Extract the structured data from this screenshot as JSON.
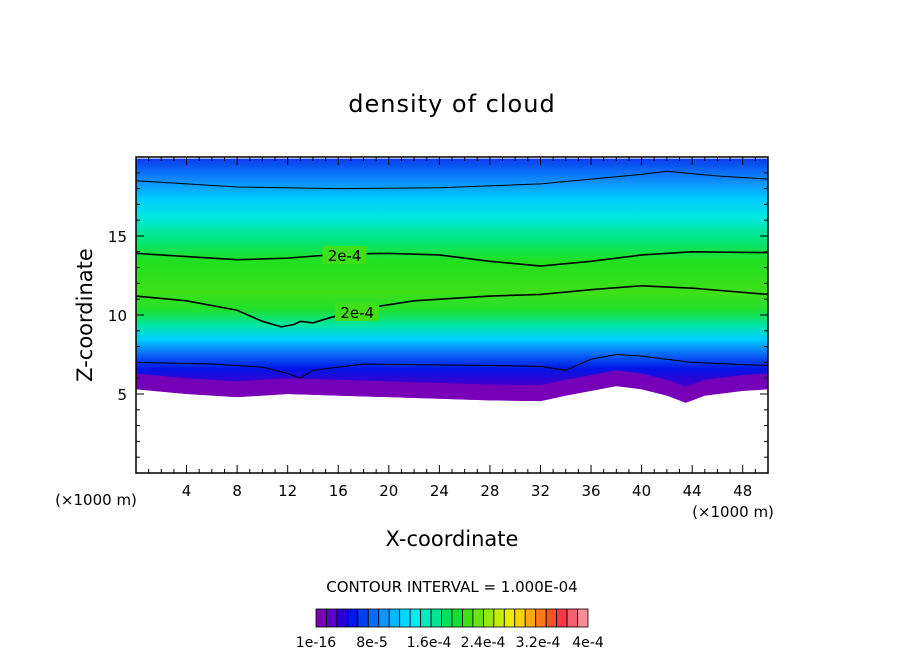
{
  "chart_data": {
    "type": "contour",
    "title": "density of cloud",
    "xlabel": "X-coordinate",
    "ylabel": "Z-coordinate",
    "x_unit_left": "(×1000 m)",
    "x_unit_right": "(×1000 m)",
    "xlim": [
      0,
      50
    ],
    "ylim": [
      0,
      20
    ],
    "x_ticks": [
      4,
      8,
      12,
      16,
      20,
      24,
      28,
      32,
      36,
      40,
      44,
      48
    ],
    "y_ticks": [
      5,
      10,
      15
    ],
    "contour_interval_text": "CONTOUR INTERVAL = 1.000E-04",
    "contour_labels": [
      {
        "text": "2e-4",
        "x": 16.5,
        "z": 13.8
      },
      {
        "text": "2e-4",
        "x": 17.5,
        "z": 10.2
      }
    ],
    "contour_lines": [
      {
        "level": "2e-4",
        "points": [
          [
            0,
            13.9
          ],
          [
            4,
            13.7
          ],
          [
            8,
            13.5
          ],
          [
            12,
            13.6
          ],
          [
            16,
            13.85
          ],
          [
            20,
            13.9
          ],
          [
            24,
            13.8
          ],
          [
            28,
            13.4
          ],
          [
            32,
            13.1
          ],
          [
            36,
            13.4
          ],
          [
            40,
            13.8
          ],
          [
            44,
            14.0
          ],
          [
            50,
            13.95
          ]
        ]
      },
      {
        "level": "2e-4",
        "points": [
          [
            0,
            11.2
          ],
          [
            4,
            10.9
          ],
          [
            8,
            10.3
          ],
          [
            10,
            9.6
          ],
          [
            11.5,
            9.25
          ],
          [
            12.5,
            9.4
          ],
          [
            13,
            9.6
          ],
          [
            14,
            9.5
          ],
          [
            15,
            9.75
          ],
          [
            18,
            10.4
          ],
          [
            22,
            10.9
          ],
          [
            28,
            11.2
          ],
          [
            32,
            11.3
          ],
          [
            36,
            11.6
          ],
          [
            40,
            11.85
          ],
          [
            44,
            11.7
          ],
          [
            50,
            11.3
          ]
        ]
      },
      {
        "level": "",
        "points": [
          [
            0,
            18.5
          ],
          [
            8,
            18.1
          ],
          [
            16,
            18.0
          ],
          [
            24,
            18.05
          ],
          [
            32,
            18.3
          ],
          [
            40,
            18.9
          ],
          [
            42,
            19.1
          ],
          [
            46,
            18.8
          ],
          [
            50,
            18.6
          ]
        ]
      },
      {
        "level": "",
        "points": [
          [
            0,
            7.0
          ],
          [
            6,
            6.9
          ],
          [
            10,
            6.7
          ],
          [
            12,
            6.3
          ],
          [
            13,
            6.0
          ],
          [
            14,
            6.5
          ],
          [
            18,
            6.9
          ],
          [
            28,
            6.8
          ],
          [
            32,
            6.75
          ],
          [
            34,
            6.5
          ],
          [
            36,
            7.2
          ],
          [
            38,
            7.5
          ],
          [
            40,
            7.4
          ],
          [
            44,
            7.0
          ],
          [
            50,
            6.8
          ]
        ]
      }
    ],
    "cloud_base_z": [
      [
        0,
        5.3
      ],
      [
        4,
        5.0
      ],
      [
        8,
        4.8
      ],
      [
        12,
        5.0
      ],
      [
        16,
        4.9
      ],
      [
        20,
        4.8
      ],
      [
        24,
        4.7
      ],
      [
        28,
        4.6
      ],
      [
        32,
        4.55
      ],
      [
        34,
        4.9
      ],
      [
        36,
        5.2
      ],
      [
        38,
        5.5
      ],
      [
        40,
        5.3
      ],
      [
        42,
        4.9
      ],
      [
        43.5,
        4.45
      ],
      [
        45,
        4.9
      ],
      [
        48,
        5.2
      ],
      [
        50,
        5.3
      ]
    ],
    "cloud_top_z": 19.9,
    "colorbar": {
      "tick_labels": [
        "1e-16",
        "8e-5",
        "1.6e-4",
        "2.4e-4",
        "3.2e-4",
        "4e-4"
      ],
      "colors": [
        "#7b00b5",
        "#5a00c8",
        "#2a00d8",
        "#0016e6",
        "#0040f0",
        "#0a6af5",
        "#0f94fa",
        "#00b8ff",
        "#00d8ff",
        "#00ecee",
        "#00eabf",
        "#00e690",
        "#00e25e",
        "#10e030",
        "#3ee018",
        "#6ae414",
        "#98e810",
        "#c4ec0c",
        "#e8ee0a",
        "#f8d20a",
        "#fca810",
        "#fc7a18",
        "#f85028",
        "#f43848",
        "#f66070",
        "#f88c98"
      ]
    }
  }
}
